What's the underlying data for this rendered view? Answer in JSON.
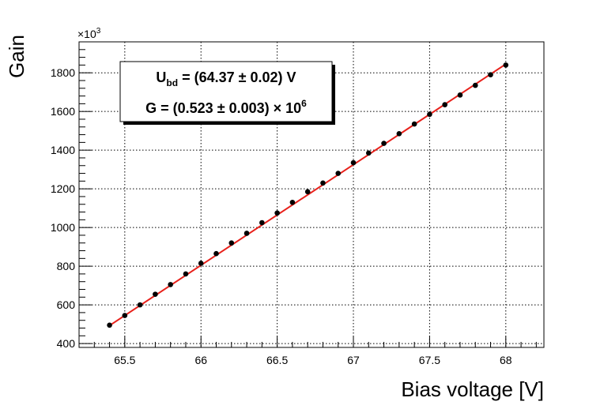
{
  "chart_data": {
    "type": "scatter",
    "xlabel": "Bias voltage [V]",
    "ylabel": "Gain",
    "y_multiplier": "×10",
    "y_multiplier_exp": "3",
    "xlim": [
      65.2,
      68.25
    ],
    "ylim": [
      380,
      1960
    ],
    "x_ticks": [
      65.5,
      66,
      66.5,
      67,
      67.5,
      68
    ],
    "x_tick_labels": [
      "65.5",
      "66",
      "66.5",
      "67",
      "67.5",
      "68"
    ],
    "y_ticks": [
      400,
      600,
      800,
      1000,
      1200,
      1400,
      1600,
      1800
    ],
    "y_tick_labels": [
      "400",
      "600",
      "800",
      "1000",
      "1200",
      "1400",
      "1600",
      "1800"
    ],
    "grid": true,
    "series": [
      {
        "color": "#000000",
        "x": [
          65.4,
          65.5,
          65.6,
          65.7,
          65.8,
          65.9,
          66.0,
          66.1,
          66.2,
          66.3,
          66.4,
          66.5,
          66.6,
          66.7,
          66.8,
          66.9,
          67.0,
          67.1,
          67.2,
          67.3,
          67.4,
          67.5,
          67.6,
          67.7,
          67.8,
          67.9,
          68.0
        ],
        "y": [
          495,
          545,
          600,
          655,
          705,
          760,
          815,
          865,
          920,
          970,
          1025,
          1075,
          1130,
          1185,
          1230,
          1280,
          1335,
          1385,
          1435,
          1485,
          1535,
          1585,
          1635,
          1685,
          1735,
          1790,
          1840
        ]
      }
    ],
    "fit": {
      "color": "#e8211b",
      "x_range": [
        65.4,
        68.0
      ],
      "y_range": [
        493,
        1845
      ]
    },
    "stats_box": {
      "line1_main": "U",
      "line1_sub": "bd",
      "line1_rest": " = (64.37 ± 0.02) V",
      "line2_main": "G = (0.523 ± 0.003) × 10",
      "line2_exp": "6"
    }
  }
}
